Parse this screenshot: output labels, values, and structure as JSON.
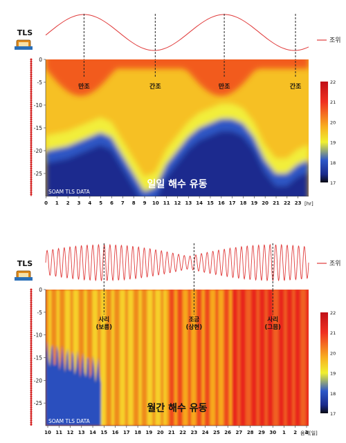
{
  "colors": {
    "tide_line": "#e03a3a",
    "cable_dot": "#d42020",
    "marker_dash": "#222222",
    "colormap": [
      "#0b0b14",
      "#1a2a8a",
      "#2e58c8",
      "#f0f030",
      "#f8b020",
      "#f03020",
      "#c01018"
    ]
  },
  "icons": [
    "tls-device-icon"
  ],
  "chart_data": [
    {
      "type": "heatmap",
      "panel": "daily",
      "device_label": "TLS",
      "legend_label": "조위",
      "center_label": "일일 해수 유동",
      "watermark": "SOAM TLS DATA",
      "x_unit_label": "[hr]",
      "x_ticks": [
        "0",
        "1",
        "2",
        "3",
        "4",
        "5",
        "6",
        "7",
        "8",
        "9",
        "10",
        "11",
        "12",
        "13",
        "14",
        "15",
        "16",
        "17",
        "18",
        "19",
        "20",
        "21",
        "22",
        "23"
      ],
      "y_ticks": [
        "0",
        "-5",
        "-10",
        "-15",
        "-20",
        "-25"
      ],
      "ylim": [
        -30,
        0
      ],
      "xlim": [
        0,
        24
      ],
      "colorbar": {
        "min": 17,
        "max": 22,
        "ticks": [
          "22",
          "21",
          "20",
          "19",
          "18",
          "17"
        ]
      },
      "tide_markers": [
        {
          "x": 3.5,
          "label": "만조"
        },
        {
          "x": 10.0,
          "label": "간조"
        },
        {
          "x": 16.3,
          "label": "만조"
        },
        {
          "x": 22.8,
          "label": "간조"
        }
      ],
      "tide_curve": {
        "period_hr": 12.8,
        "phase_peak_hr": 3.5
      },
      "thermocline_depth": {
        "x": [
          0,
          2,
          4,
          5,
          6,
          7,
          8,
          9,
          10,
          11,
          12,
          13,
          14,
          15,
          16,
          17,
          18,
          19,
          20,
          21,
          22,
          23,
          24
        ],
        "y": [
          -20,
          -19,
          -17,
          -16,
          -17,
          -21,
          -25,
          -29,
          -28,
          -23,
          -20,
          -17,
          -15,
          -14,
          -13,
          -13,
          -14,
          -17,
          -22,
          -25,
          -25,
          -23,
          -22
        ]
      }
    },
    {
      "type": "heatmap",
      "panel": "monthly",
      "device_label": "TLS",
      "legend_label": "조위",
      "center_label": "월간 해수 유동",
      "watermark": "SOAM TLS DATA",
      "x_unit_label": "음력[일]",
      "x_ticks": [
        "10",
        "11",
        "12",
        "13",
        "14",
        "15",
        "16",
        "17",
        "18",
        "19",
        "20",
        "21",
        "22",
        "23",
        "24",
        "25",
        "26",
        "27",
        "28",
        "29",
        "30",
        "1",
        "2",
        "3"
      ],
      "y_ticks": [
        "0",
        "-5",
        "-10",
        "-15",
        "-20",
        "-25"
      ],
      "ylim": [
        -30,
        0
      ],
      "colorbar": {
        "min": 17,
        "max": 22,
        "ticks": [
          "22",
          "21",
          "20",
          "19",
          "18",
          "17"
        ]
      },
      "tide_markers": [
        {
          "tick_index": 5,
          "label": "사리\n(보름)"
        },
        {
          "tick_index": 13,
          "label": "조금\n(상현)"
        },
        {
          "tick_index": 20,
          "label": "사리\n(그믐)"
        }
      ]
    }
  ]
}
